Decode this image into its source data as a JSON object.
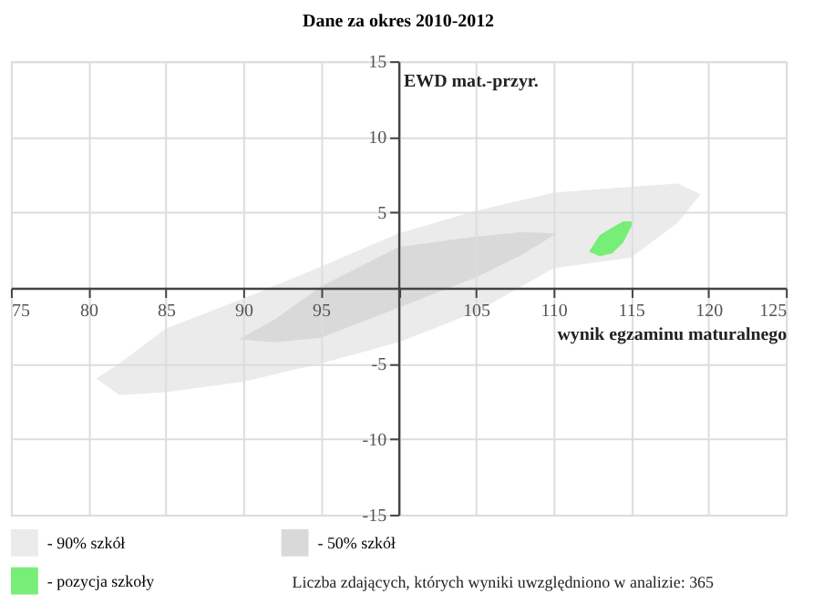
{
  "chart_data": {
    "type": "area",
    "title": "Dane za okres 2010-2012",
    "xlabel": "wynik egzaminu maturalnego",
    "ylabel": "EWD mat.-przyr.",
    "xlim": [
      75,
      125
    ],
    "ylim": [
      -15,
      15
    ],
    "xticks": [
      75,
      80,
      85,
      90,
      95,
      {
        "value": 100,
        "label": null
      },
      105,
      110,
      115,
      120,
      125
    ],
    "yticks": [
      -15,
      -10,
      -5,
      {
        "value": 0,
        "label": null
      },
      5,
      10,
      15
    ],
    "grid": true,
    "legend": "bottom",
    "annotations": [
      "Liczba zdających, których wyniki uwzględniono w analizie: 365"
    ],
    "series": [
      {
        "name": "- 90% szkół",
        "color": "#ebebeb",
        "x": [
          80.5,
          82,
          85,
          90,
          95,
          100,
          105,
          110,
          115,
          118,
          119.5,
          118,
          115,
          110,
          105,
          100,
          95,
          90,
          85,
          82,
          80.5
        ],
        "values": [
          -6.0,
          -5.0,
          -2.7,
          -0.7,
          1.4,
          3.6,
          5.1,
          6.3,
          6.7,
          6.9,
          6.2,
          4.3,
          2.0,
          1.3,
          -1.6,
          -3.6,
          -5.0,
          -6.2,
          -6.9,
          -7.1,
          -6.0
        ]
      },
      {
        "name": "- 50% szkół",
        "color": "#d9d9d9",
        "x": [
          89.7,
          92,
          95,
          100,
          105,
          108,
          110.2,
          108,
          105,
          100,
          95,
          92,
          89.7
        ],
        "values": [
          -3.4,
          -2.1,
          0.1,
          2.7,
          3.4,
          3.7,
          3.6,
          2.2,
          0.7,
          -1.3,
          -3.3,
          -3.6,
          -3.4
        ]
      },
      {
        "name": "- pozycja szkoły",
        "color": "#77ee77",
        "x": [
          112.3,
          113,
          113.8,
          114.5,
          115.2,
          114.5,
          113.8,
          113,
          112.3
        ],
        "values": [
          2.4,
          3.5,
          4.0,
          4.4,
          4.4,
          3.0,
          2.3,
          2.1,
          2.4
        ]
      }
    ]
  }
}
